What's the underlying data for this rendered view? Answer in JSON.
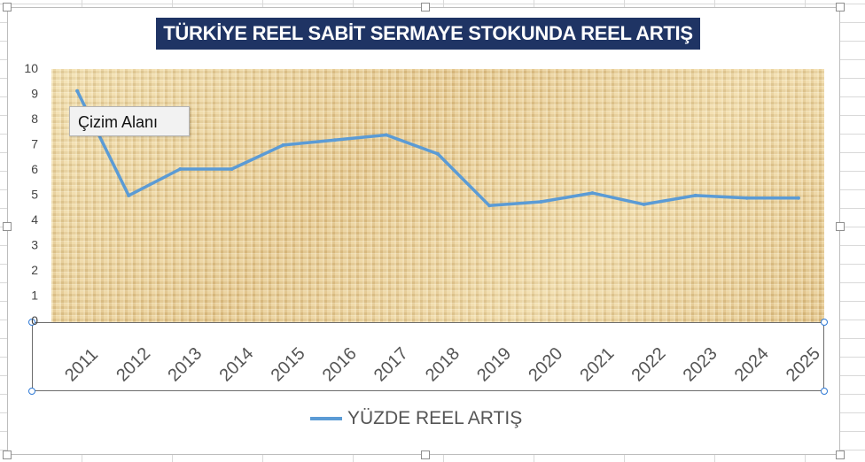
{
  "chart_data": {
    "type": "line",
    "title": "TÜRKİYE REEL SABİT SERMAYE STOKUNDA REEL ARTIŞ",
    "categories": [
      "2011",
      "2012",
      "2013",
      "2014",
      "2015",
      "2016",
      "2017",
      "2018",
      "2019",
      "2020",
      "2021",
      "2022",
      "2023",
      "2024",
      "2025"
    ],
    "series": [
      {
        "name": "YÜZDE REEL ARTIŞ",
        "values": [
          9.1,
          4.95,
          6.0,
          6.0,
          6.95,
          7.15,
          7.35,
          6.6,
          4.55,
          4.7,
          5.05,
          4.6,
          4.95,
          4.85,
          4.85
        ],
        "color": "#5b9bd5"
      }
    ],
    "yticks": [
      "0",
      "1",
      "2",
      "3",
      "4",
      "5",
      "6",
      "7",
      "8",
      "9",
      "10"
    ],
    "ylim": [
      0,
      10
    ],
    "xlabel": "",
    "ylabel": "",
    "grid": false,
    "legend": "bottom"
  },
  "tooltip": {
    "text": "Çizim Alanı"
  },
  "colors": {
    "title_bg": "#1f3464",
    "plot_bg": "#e7cf97",
    "selection": "#2f7ad6"
  }
}
